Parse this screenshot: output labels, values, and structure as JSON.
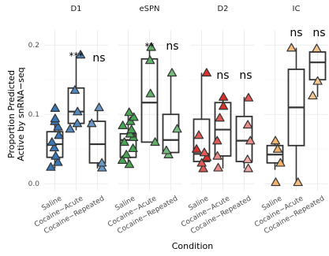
{
  "chart_data": {
    "type": "box",
    "xlabel": "Condition",
    "ylabel_lines": [
      "Proportion Predicted",
      "Active by snRNA−seq"
    ],
    "ylim": [
      -0.01,
      0.215
    ],
    "yticks": [
      {
        "value": 0.0,
        "label": "0.0"
      },
      {
        "value": 0.1,
        "label": "0.1"
      },
      {
        "value": 0.2,
        "label": "0.2"
      }
    ],
    "categories": [
      "Saline",
      "Cocaine−Acute",
      "Cocaine−Repeated"
    ],
    "panels": [
      {
        "title": "D1",
        "color": "#3a78b5",
        "groups": [
          {
            "category": "Saline",
            "box": {
              "min": 0.022,
              "q1": 0.038,
              "median": 0.057,
              "q3": 0.075,
              "max": 0.098
            },
            "points": [
              0.024,
              0.031,
              0.04,
              0.052,
              0.06,
              0.07,
              0.082,
              0.09,
              0.094,
              0.109
            ]
          },
          {
            "category": "Cocaine−Acute",
            "box": {
              "min": 0.077,
              "q1": 0.087,
              "median": 0.104,
              "q3": 0.138,
              "max": 0.184
            },
            "points": [
              0.079,
              0.087,
              0.104,
              0.135,
              0.186
            ],
            "significance": "***"
          },
          {
            "category": "Cocaine−Repeated",
            "box": {
              "min": 0.022,
              "q1": 0.03,
              "median": 0.057,
              "q3": 0.09,
              "max": 0.111
            },
            "points": [
              0.023,
              0.03,
              0.087,
              0.11
            ],
            "significance": "ns"
          }
        ]
      },
      {
        "title": "eSPN",
        "color": "#4aa554",
        "groups": [
          {
            "category": "Saline",
            "box": {
              "min": 0.03,
              "q1": 0.038,
              "median": 0.063,
              "q3": 0.072,
              "max": 0.104
            },
            "points": [
              0.028,
              0.034,
              0.042,
              0.051,
              0.06,
              0.067,
              0.072,
              0.078,
              0.084,
              0.09,
              0.096,
              0.103
            ]
          },
          {
            "category": "Cocaine−Acute",
            "box": {
              "min": 0.06,
              "q1": 0.06,
              "median": 0.117,
              "q3": 0.18,
              "max": 0.199
            },
            "points": [
              0.06,
              0.13,
              0.178,
              0.197
            ],
            "significance": "**"
          },
          {
            "category": "Cocaine−Repeated",
            "box": {
              "min": 0.04,
              "q1": 0.045,
              "median": 0.063,
              "q3": 0.1,
              "max": 0.158
            },
            "points": [
              0.042,
              0.048,
              0.079,
              0.16
            ],
            "significance": "ns"
          }
        ]
      },
      {
        "title": "D2",
        "color": "#d9312c",
        "groups": [
          {
            "category": "Saline",
            "box": {
              "min": 0.022,
              "q1": 0.032,
              "median": 0.043,
              "q3": 0.093,
              "max": 0.16
            },
            "points": [
              0.022,
              0.03,
              0.038,
              0.045,
              0.05,
              0.07,
              0.16
            ],
            "fill_shades": [
              "#e25a55",
              "#e25a55",
              "#d9312c",
              "#e25a55",
              "#d9312c",
              "#e25a55",
              "#d9312c"
            ]
          },
          {
            "category": "Cocaine−Acute",
            "box": {
              "min": 0.022,
              "q1": 0.04,
              "median": 0.078,
              "q3": 0.117,
              "max": 0.125
            },
            "points": [
              0.023,
              0.04,
              0.062,
              0.095,
              0.112,
              0.125
            ],
            "significance": "ns",
            "fill_shades": [
              "#ec8c89",
              "#ec8c89",
              "#e25a55",
              "#e25a55",
              "#d9312c",
              "#d9312c"
            ]
          },
          {
            "category": "Cocaine−Repeated",
            "box": {
              "min": 0.022,
              "q1": 0.032,
              "median": 0.062,
              "q3": 0.097,
              "max": 0.125
            },
            "points": [
              0.022,
              0.035,
              0.062,
              0.085,
              0.124
            ],
            "significance": "ns",
            "fill_shades": [
              "#f3a9a6",
              "#f3a9a6",
              "#ec8c89",
              "#ec8c89",
              "#e25a55"
            ]
          }
        ]
      },
      {
        "title": "IC",
        "color": "#f2b36c",
        "groups": [
          {
            "category": "Saline",
            "box": {
              "min": 0.02,
              "q1": 0.03,
              "median": 0.042,
              "q3": 0.055,
              "max": 0.064
            },
            "points": [
              0.002,
              0.03,
              0.05,
              0.062
            ]
          },
          {
            "category": "Cocaine−Acute",
            "box": {
              "min": 0.0,
              "q1": 0.055,
              "median": 0.11,
              "q3": 0.165,
              "max": 0.196
            },
            "points": [
              0.002,
              0.196
            ],
            "significance": "ns"
          },
          {
            "category": "Cocaine−Repeated",
            "box": {
              "min": 0.125,
              "q1": 0.15,
              "median": 0.175,
              "q3": 0.19,
              "max": 0.198
            },
            "points": [
              0.127,
              0.148,
              0.195
            ],
            "significance": "ns"
          }
        ]
      }
    ]
  }
}
